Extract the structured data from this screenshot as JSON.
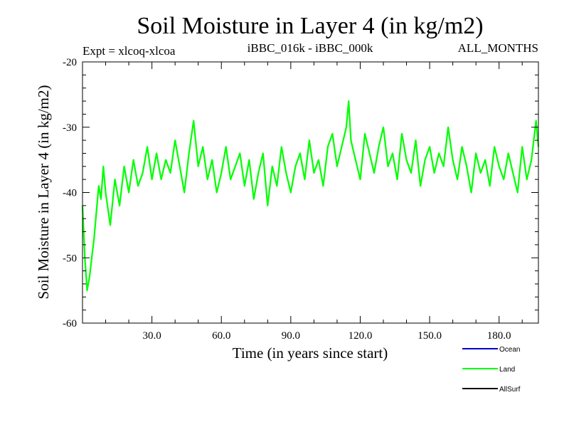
{
  "chart_data": {
    "type": "line",
    "title": "Soil Moisture in Layer 4 (in kg/m2)",
    "subtitle_left": "Expt = xlcoq-xlcoa",
    "subtitle_center": "iBBC_016k - iBBC_000k",
    "subtitle_right": "ALL_MONTHS",
    "xlabel": "Time (in years since start)",
    "ylabel": "Soil Moisture in Layer 4 (in kg/m2)",
    "xlim": [
      0,
      197
    ],
    "ylim": [
      -60,
      -20
    ],
    "x_ticks": [
      30,
      60,
      90,
      120,
      150,
      180
    ],
    "x_tick_labels": [
      "30.0",
      "60.0",
      "90.0",
      "120.0",
      "150.0",
      "180.0"
    ],
    "y_ticks": [
      -20,
      -30,
      -40,
      -50,
      -60
    ],
    "y_tick_labels": [
      "-20",
      "-30",
      "-40",
      "-50",
      "-60"
    ],
    "legend": [
      {
        "name": "Ocean",
        "color": "#0000cc"
      },
      {
        "name": "Land",
        "color": "#00ff00"
      },
      {
        "name": "AllSurf",
        "color": "#000000"
      }
    ],
    "series": [
      {
        "name": "Land",
        "color": "#00ff00",
        "x": [
          0,
          1,
          2,
          3,
          4,
          5,
          6,
          7,
          8,
          9,
          10,
          12,
          14,
          16,
          18,
          20,
          22,
          24,
          26,
          28,
          30,
          32,
          34,
          36,
          38,
          40,
          42,
          44,
          46,
          48,
          50,
          52,
          54,
          56,
          58,
          60,
          62,
          64,
          66,
          68,
          70,
          72,
          74,
          76,
          78,
          80,
          82,
          84,
          86,
          88,
          90,
          92,
          94,
          96,
          98,
          100,
          102,
          104,
          106,
          108,
          110,
          112,
          114,
          115,
          116,
          118,
          120,
          122,
          124,
          126,
          128,
          130,
          132,
          134,
          136,
          138,
          140,
          142,
          144,
          146,
          148,
          150,
          152,
          154,
          156,
          158,
          160,
          162,
          164,
          166,
          168,
          170,
          172,
          174,
          176,
          178,
          180,
          182,
          184,
          186,
          188,
          190,
          192,
          194,
          196,
          197
        ],
        "values": [
          -42,
          -50,
          -55,
          -53,
          -50,
          -47,
          -43,
          -39,
          -41,
          -36,
          -40,
          -45,
          -38,
          -42,
          -36,
          -40,
          -35,
          -39,
          -37,
          -33,
          -38,
          -34,
          -38,
          -35,
          -37,
          -32,
          -36,
          -40,
          -34,
          -29,
          -36,
          -33,
          -38,
          -35,
          -40,
          -37,
          -33,
          -38,
          -36,
          -34,
          -39,
          -35,
          -41,
          -37,
          -34,
          -42,
          -36,
          -39,
          -33,
          -37,
          -40,
          -36,
          -34,
          -38,
          -32,
          -37,
          -35,
          -39,
          -33,
          -31,
          -36,
          -33,
          -30,
          -26,
          -32,
          -35,
          -38,
          -31,
          -34,
          -37,
          -33,
          -30,
          -36,
          -34,
          -38,
          -31,
          -35,
          -37,
          -32,
          -39,
          -35,
          -33,
          -37,
          -34,
          -36,
          -30,
          -35,
          -38,
          -33,
          -36,
          -40,
          -34,
          -37,
          -35,
          -39,
          -33,
          -36,
          -38,
          -34,
          -37,
          -40,
          -33,
          -38,
          -35,
          -29,
          -33
        ]
      }
    ]
  }
}
